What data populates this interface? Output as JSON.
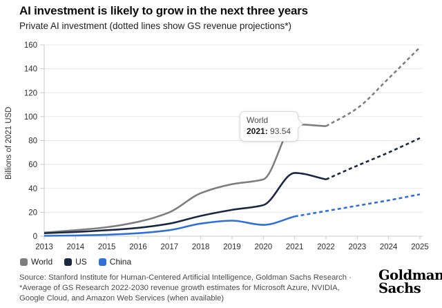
{
  "header": {
    "title": "AI investment is likely to grow in the next three years",
    "subtitle": "Private AI investment (dotted lines show GS revenue projections*)"
  },
  "chart_data": {
    "type": "line",
    "title": "Private AI investment (dotted lines show GS revenue projections*)",
    "xlabel": "",
    "ylabel": "Billions of 2021 USD",
    "ylim": [
      0,
      160
    ],
    "y_ticks": [
      0,
      20,
      40,
      60,
      80,
      100,
      120,
      140,
      160
    ],
    "x_ticks": [
      2013,
      2014,
      2015,
      2016,
      2017,
      2018,
      2019,
      2020,
      2021,
      2022,
      2023,
      2024,
      2025
    ],
    "grid": "horizontal",
    "legend_position": "bottom-left",
    "series": [
      {
        "name": "World",
        "color": "#7e7e7e",
        "actual": {
          "years": [
            2013,
            2014,
            2015,
            2016,
            2017,
            2018,
            2019,
            2020,
            2021,
            2022
          ],
          "values": [
            3,
            5,
            7.5,
            12,
            20,
            36,
            43.5,
            47.5,
            93.54,
            92
          ]
        },
        "projection": {
          "years": [
            2022,
            2023,
            2024,
            2025
          ],
          "values": [
            92,
            107,
            132,
            158
          ]
        }
      },
      {
        "name": "US",
        "color": "#1a2742",
        "actual": {
          "years": [
            2013,
            2014,
            2015,
            2016,
            2017,
            2018,
            2019,
            2020,
            2021,
            2022
          ],
          "values": [
            2.5,
            3.5,
            5,
            7,
            10.5,
            17,
            22,
            26,
            52.9,
            47.5
          ]
        },
        "projection": {
          "years": [
            2022,
            2023,
            2024,
            2025
          ],
          "values": [
            47.5,
            59,
            70,
            82
          ]
        }
      },
      {
        "name": "China",
        "color": "#2e6fd8",
        "actual": {
          "years": [
            2013,
            2014,
            2015,
            2016,
            2017,
            2018,
            2019,
            2020,
            2021
          ],
          "values": [
            0.3,
            0.6,
            1.2,
            2.5,
            5,
            10.5,
            13,
            9.5,
            16.5
          ]
        },
        "projection": {
          "years": [
            2021,
            2022,
            2023,
            2024,
            2025
          ],
          "values": [
            16.5,
            21,
            25.5,
            30,
            35
          ]
        }
      }
    ],
    "annotation": {
      "series": "World",
      "year": 2021,
      "value": 93.54
    }
  },
  "tooltip": {
    "series_label": "World",
    "year_label": "2021:",
    "value": "93.54"
  },
  "footer": {
    "source_lines": [
      "Source: Stanford Institute for Human-Centered Artificial Intelligence, Goldman Sachs Research ·",
      "*Average of GS Research 2022-2030 revenue growth estimates for Microsoft Azure, NVIDIA,",
      "Google Cloud, and Amazon Web Services (when available)"
    ],
    "logo_lines": [
      "Goldman",
      "Sachs"
    ]
  }
}
